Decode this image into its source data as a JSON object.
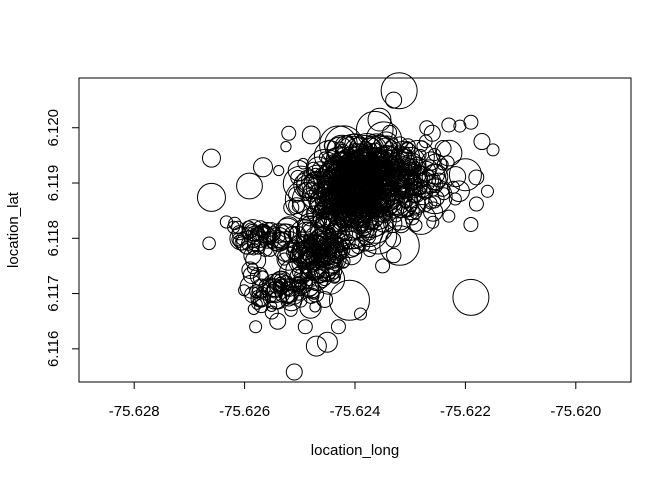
{
  "chart_data": {
    "type": "scatter",
    "title": "",
    "xlabel": "location_long",
    "ylabel": "location_lat",
    "xlim": [
      -75.629,
      -75.619
    ],
    "ylim": [
      6.1154,
      6.1209
    ],
    "x_ticks": [
      -75.628,
      -75.626,
      -75.624,
      -75.622,
      -75.62
    ],
    "x_tick_labels": [
      "-75.628",
      "-75.626",
      "-75.624",
      "-75.622",
      "-75.620"
    ],
    "y_ticks": [
      6.116,
      6.117,
      6.118,
      6.119,
      6.12
    ],
    "y_tick_labels": [
      "6.116",
      "6.117",
      "6.118",
      "6.119",
      "6.120"
    ],
    "grid": false,
    "legend": "none",
    "marker": "open-circle",
    "clusters": [
      {
        "x": -75.6241,
        "y": 6.1188,
        "sx": 0.00045,
        "sy": 0.00042,
        "n": 380,
        "rmin": 5,
        "rmax": 22
      },
      {
        "x": -75.6237,
        "y": 6.1192,
        "sx": 0.00055,
        "sy": 0.0003,
        "n": 220,
        "rmin": 5,
        "rmax": 18
      },
      {
        "x": -75.6247,
        "y": 6.1177,
        "sx": 0.00028,
        "sy": 0.00022,
        "n": 120,
        "rmin": 5,
        "rmax": 16
      },
      {
        "x": -75.6253,
        "y": 6.1171,
        "sx": 0.00035,
        "sy": 0.0002,
        "n": 80,
        "rmin": 5,
        "rmax": 12
      },
      {
        "x": -75.6257,
        "y": 6.118,
        "sx": 0.0003,
        "sy": 0.00012,
        "n": 50,
        "rmin": 6,
        "rmax": 12
      },
      {
        "x": -75.6228,
        "y": 6.119,
        "sx": 0.0004,
        "sy": 0.00035,
        "n": 60,
        "rmin": 6,
        "rmax": 12
      }
    ],
    "points": [
      {
        "x": -75.6232,
        "y": 6.12067,
        "r": 18
      },
      {
        "x": -75.6233,
        "y": 6.1205,
        "r": 8
      },
      {
        "x": -75.622,
        "y": 6.11915,
        "r": 16
      },
      {
        "x": -75.6219,
        "y": 6.11693,
        "r": 18
      },
      {
        "x": -75.6266,
        "y": 6.11874,
        "r": 14
      },
      {
        "x": -75.6266,
        "y": 6.11945,
        "r": 9
      },
      {
        "x": -75.6251,
        "y": 6.11558,
        "r": 8
      },
      {
        "x": -75.6241,
        "y": 6.11688,
        "r": 20
      },
      {
        "x": -75.6245,
        "y": 6.11612,
        "r": 10
      },
      {
        "x": -75.6247,
        "y": 6.11605,
        "r": 10
      },
      {
        "x": -75.6239,
        "y": 6.11663,
        "r": 6
      },
      {
        "x": -75.6223,
        "y": 6.12005,
        "r": 7
      },
      {
        "x": -75.6221,
        "y": 6.12003,
        "r": 6
      },
      {
        "x": -75.6219,
        "y": 6.1201,
        "r": 7
      },
      {
        "x": -75.6217,
        "y": 6.11975,
        "r": 8
      },
      {
        "x": -75.6215,
        "y": 6.1196,
        "r": 6
      },
      {
        "x": -75.6219,
        "y": 6.11825,
        "r": 7
      },
      {
        "x": -75.6223,
        "y": 6.1184,
        "r": 6
      },
      {
        "x": -75.6218,
        "y": 6.11862,
        "r": 7
      },
      {
        "x": -75.6216,
        "y": 6.11885,
        "r": 6
      },
      {
        "x": -75.6229,
        "y": 6.1186,
        "r": 10
      },
      {
        "x": -75.6226,
        "y": 6.1199,
        "r": 8
      },
      {
        "x": -75.6227,
        "y": 6.12,
        "r": 7
      },
      {
        "x": -75.6252,
        "y": 6.1199,
        "r": 7
      },
      {
        "x": -75.6258,
        "y": 6.1164,
        "r": 6
      },
      {
        "x": -75.6254,
        "y": 6.1165,
        "r": 8
      },
      {
        "x": -75.6249,
        "y": 6.1164,
        "r": 7
      },
      {
        "x": -75.6243,
        "y": 6.1164,
        "r": 7
      },
      {
        "x": -75.6235,
        "y": 6.1175,
        "r": 7
      },
      {
        "x": -75.6262,
        "y": 6.1182,
        "r": 6
      },
      {
        "x": -75.6261,
        "y": 6.1181,
        "r": 7
      },
      {
        "x": -75.6258,
        "y": 6.1176,
        "r": 10
      },
      {
        "x": -75.6257,
        "y": 6.1171,
        "r": 9
      },
      {
        "x": -75.6257,
        "y": 6.1169,
        "r": 8
      },
      {
        "x": -75.623,
        "y": 6.1185,
        "r": 9
      },
      {
        "x": -75.6231,
        "y": 6.1188,
        "r": 8
      }
    ]
  }
}
